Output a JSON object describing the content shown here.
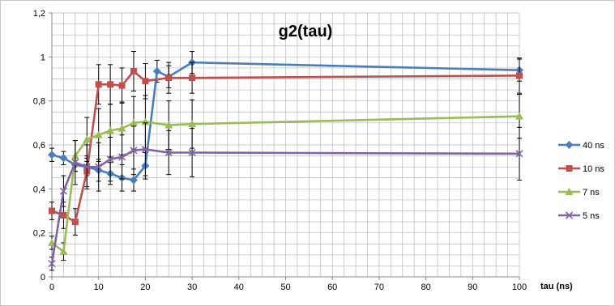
{
  "chart_data": {
    "type": "line",
    "title": "g2(tau)",
    "xlabel": "tau (ns)",
    "ylabel": "",
    "xlim": [
      0,
      100
    ],
    "ylim": [
      0,
      1.2
    ],
    "x_ticks": [
      "0",
      "10",
      "20",
      "30",
      "40",
      "50",
      "60",
      "70",
      "80",
      "90",
      "100"
    ],
    "y_ticks": [
      "0",
      "0,2",
      "0,4",
      "0,6",
      "0,8",
      "1",
      "1,2"
    ],
    "grid": true,
    "legend_position": "right",
    "series": [
      {
        "name": "40 ns",
        "color": "#4a7ebb",
        "marker": "diamond",
        "x": [
          0,
          2.5,
          5,
          7.5,
          10,
          12.5,
          15,
          17.5,
          20,
          22.5,
          25,
          30,
          100
        ],
        "y": [
          0.555,
          0.54,
          0.51,
          0.5,
          0.485,
          0.47,
          0.45,
          0.44,
          0.505,
          0.935,
          0.91,
          0.975,
          0.94
        ],
        "err": [
          0.03,
          0.03,
          0.03,
          0.04,
          0.05,
          0.05,
          0.06,
          0.05,
          0.06,
          0.05,
          0.05,
          0.05,
          0.05
        ]
      },
      {
        "name": "10 ns",
        "color": "#c0504d",
        "marker": "square",
        "x": [
          0,
          2.5,
          5,
          7.5,
          10,
          12.5,
          15,
          17.5,
          20,
          25,
          30,
          100
        ],
        "y": [
          0.3,
          0.28,
          0.25,
          0.48,
          0.875,
          0.875,
          0.87,
          0.935,
          0.89,
          0.905,
          0.905,
          0.915
        ],
        "err": [
          0.04,
          0.06,
          0.06,
          0.07,
          0.09,
          0.09,
          0.08,
          0.09,
          0.08,
          0.07,
          0.07,
          0.08
        ]
      },
      {
        "name": "7 ns",
        "color": "#9bbb59",
        "marker": "triangle",
        "x": [
          0,
          2.5,
          5,
          7.5,
          10,
          12.5,
          15,
          17.5,
          20,
          25,
          30,
          100
        ],
        "y": [
          0.155,
          0.115,
          0.55,
          0.625,
          0.645,
          0.665,
          0.675,
          0.7,
          0.705,
          0.69,
          0.695,
          0.73
        ],
        "err": [
          0.03,
          0.04,
          0.07,
          0.1,
          0.12,
          0.12,
          0.12,
          0.12,
          0.12,
          0.11,
          0.11,
          0.1
        ]
      },
      {
        "name": "5 ns",
        "color": "#8064a2",
        "marker": "x",
        "x": [
          0,
          2.5,
          5,
          7.5,
          10,
          12.5,
          15,
          17.5,
          20,
          25,
          30,
          100
        ],
        "y": [
          0.06,
          0.39,
          0.52,
          0.5,
          0.5,
          0.535,
          0.545,
          0.575,
          0.58,
          0.565,
          0.565,
          0.56
        ],
        "err": [
          0.03,
          0.07,
          0.1,
          0.1,
          0.11,
          0.1,
          0.1,
          0.11,
          0.12,
          0.1,
          0.11,
          0.12
        ]
      }
    ]
  }
}
